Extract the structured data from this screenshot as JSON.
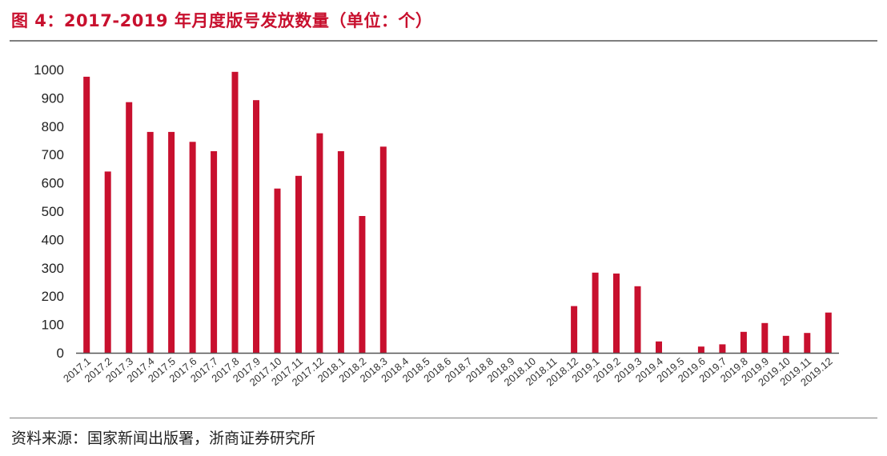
{
  "header": {
    "title": "图 4：2017-2019 年月度版号发放数量（单位：个）"
  },
  "footer": {
    "source": "资料来源：国家新闻出版署，浙商证券研究所"
  },
  "colors": {
    "bar": "#c8102e",
    "title": "#c8102e",
    "axis": "#555555"
  },
  "chart_data": {
    "type": "bar",
    "title": "图 4：2017-2019 年月度版号发放数量（单位：个）",
    "xlabel": "",
    "ylabel": "",
    "ylim": [
      0,
      1000
    ],
    "yticks": [
      0,
      100,
      200,
      300,
      400,
      500,
      600,
      700,
      800,
      900,
      1000
    ],
    "grid": false,
    "legend": "none",
    "categories": [
      "2017.1",
      "2017.2",
      "2017.3",
      "2017.4",
      "2017.5",
      "2017.6",
      "2017.7",
      "2017.8",
      "2017.9",
      "2017.10",
      "2017.11",
      "2017.12",
      "2018.1",
      "2018.2",
      "2018.3",
      "2018.4",
      "2018.5",
      "2018.6",
      "2018.7",
      "2018.8",
      "2018.9",
      "2018.10",
      "2018.11",
      "2018.12",
      "2019.1",
      "2019.2",
      "2019.3",
      "2019.4",
      "2019.5",
      "2019.6",
      "2019.7",
      "2019.8",
      "2019.9",
      "2019.10",
      "2019.11",
      "2019.12"
    ],
    "values": [
      975,
      640,
      885,
      780,
      780,
      745,
      712,
      992,
      892,
      580,
      625,
      775,
      712,
      483,
      728,
      0,
      0,
      0,
      0,
      0,
      0,
      0,
      0,
      165,
      283,
      280,
      235,
      40,
      0,
      22,
      30,
      74,
      105,
      60,
      70,
      142
    ]
  }
}
